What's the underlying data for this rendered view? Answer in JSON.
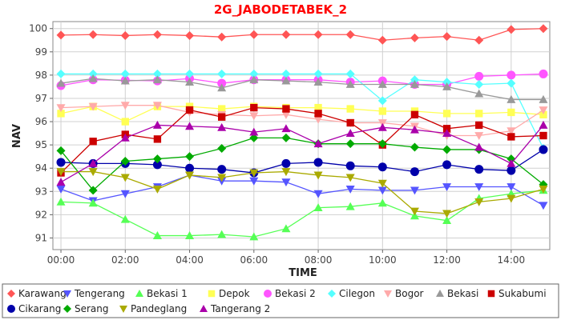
{
  "chart_data": {
    "type": "line",
    "title": "2G_JABODETABEK_2",
    "xlabel": "TIME",
    "ylabel": "NAV",
    "x_ticks": [
      "00:00",
      "02:00",
      "04:00",
      "06:00",
      "08:00",
      "10:00",
      "12:00",
      "14:00"
    ],
    "x_tick_hours": [
      0,
      2,
      4,
      6,
      8,
      10,
      12,
      14
    ],
    "y_ticks": [
      91,
      92,
      93,
      94,
      95,
      96,
      97,
      98,
      99,
      100
    ],
    "xlim": [
      -0.25,
      15.2
    ],
    "ylim": [
      90.5,
      100.3
    ],
    "grid": true,
    "legend_position": "bottom",
    "x": [
      0,
      1,
      2,
      3,
      4,
      5,
      6,
      7,
      8,
      9,
      10,
      11,
      12,
      13,
      14,
      15
    ],
    "series": [
      {
        "name": "Karawang",
        "color": "#ff5555",
        "marker": "diamond",
        "values": [
          99.72,
          99.74,
          99.7,
          99.74,
          99.7,
          99.64,
          99.74,
          99.74,
          99.74,
          99.74,
          99.5,
          99.6,
          99.66,
          99.5,
          99.96,
          100.0
        ]
      },
      {
        "name": "Tengerang",
        "color": "#5555ff",
        "marker": "triangle-down",
        "values": [
          93.1,
          92.6,
          92.9,
          93.2,
          93.7,
          93.45,
          93.45,
          93.4,
          92.9,
          93.1,
          93.05,
          93.05,
          93.2,
          93.2,
          93.2,
          92.4
        ]
      },
      {
        "name": "Bekasi 1",
        "color": "#55ff55",
        "marker": "triangle-up",
        "values": [
          92.55,
          92.5,
          91.8,
          91.1,
          91.1,
          91.15,
          91.05,
          91.4,
          92.3,
          92.35,
          92.5,
          91.95,
          91.75,
          92.7,
          92.9,
          93.05
        ]
      },
      {
        "name": "Depok",
        "color": "#ffff55",
        "marker": "square",
        "values": [
          96.35,
          96.65,
          96.0,
          96.65,
          96.65,
          96.55,
          96.65,
          96.6,
          96.6,
          96.55,
          96.45,
          96.45,
          96.35,
          96.35,
          96.4,
          96.3
        ]
      },
      {
        "name": "Bekasi 2",
        "color": "#ff55ff",
        "marker": "circle",
        "values": [
          97.55,
          97.8,
          97.78,
          97.75,
          97.85,
          97.65,
          97.8,
          97.8,
          97.8,
          97.7,
          97.75,
          97.6,
          97.6,
          97.95,
          98.0,
          98.05
        ]
      },
      {
        "name": "Cilegon",
        "color": "#55ffff",
        "marker": "diamond",
        "values": [
          98.05,
          98.05,
          98.05,
          98.05,
          98.05,
          98.05,
          98.05,
          98.05,
          98.05,
          98.05,
          96.9,
          97.8,
          97.7,
          97.6,
          97.65,
          94.85
        ]
      },
      {
        "name": "Bogor",
        "color": "#ffaaaa",
        "marker": "triangle-down",
        "values": [
          96.6,
          96.65,
          96.7,
          96.7,
          96.4,
          96.3,
          96.25,
          96.3,
          96.1,
          95.95,
          95.95,
          95.8,
          95.4,
          95.4,
          95.6,
          96.5
        ]
      },
      {
        "name": "Bekasi",
        "color": "#999999",
        "marker": "triangle-up",
        "values": [
          97.65,
          97.85,
          97.75,
          97.8,
          97.7,
          97.45,
          97.8,
          97.75,
          97.7,
          97.6,
          97.6,
          97.6,
          97.5,
          97.2,
          96.95,
          96.95
        ]
      },
      {
        "name": "Sukabumi",
        "color": "#cc0000",
        "marker": "square",
        "values": [
          93.8,
          95.15,
          95.45,
          95.25,
          96.5,
          96.2,
          96.6,
          96.55,
          96.35,
          95.95,
          95.0,
          96.3,
          95.7,
          95.85,
          95.35,
          95.4
        ]
      },
      {
        "name": "Cikarang",
        "color": "#0000aa",
        "marker": "circle",
        "values": [
          94.25,
          94.2,
          94.2,
          94.15,
          94.0,
          93.95,
          93.8,
          94.2,
          94.25,
          94.1,
          94.05,
          93.85,
          94.15,
          93.95,
          93.9,
          94.8
        ]
      },
      {
        "name": "Serang",
        "color": "#00aa00",
        "marker": "diamond",
        "values": [
          94.75,
          93.05,
          94.3,
          94.4,
          94.5,
          94.85,
          95.3,
          95.3,
          95.05,
          95.05,
          95.05,
          94.9,
          94.8,
          94.8,
          94.4,
          93.3
        ]
      },
      {
        "name": "Pandeglang",
        "color": "#aaaa00",
        "marker": "triangle-down",
        "values": [
          93.85,
          93.85,
          93.6,
          93.1,
          93.7,
          93.6,
          93.8,
          93.85,
          93.7,
          93.6,
          93.35,
          92.15,
          92.05,
          92.55,
          92.7,
          93.1
        ]
      },
      {
        "name": "Tangerang 2",
        "color": "#aa00aa",
        "marker": "triangle-up",
        "values": [
          93.4,
          94.2,
          95.3,
          95.85,
          95.8,
          95.75,
          95.55,
          95.7,
          95.05,
          95.5,
          95.75,
          95.65,
          95.5,
          94.9,
          94.2,
          95.85
        ]
      }
    ]
  }
}
